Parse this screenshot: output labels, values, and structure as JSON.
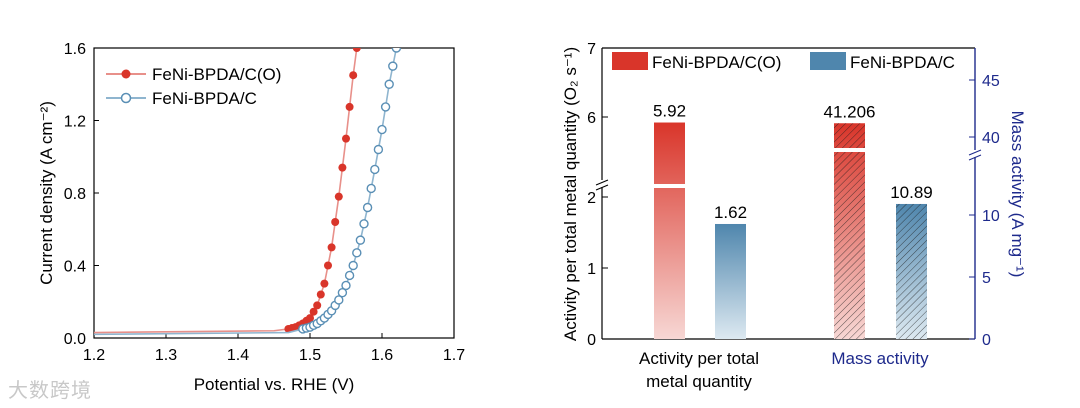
{
  "watermark": "大数跨境",
  "chart_data": [
    {
      "type": "line",
      "title": "",
      "xlabel": "Potential vs. RHE (V)",
      "ylabel": "Current density (A cm⁻²)",
      "xlim": [
        1.2,
        1.7
      ],
      "ylim": [
        0.0,
        1.6
      ],
      "xticks": [
        "1.2",
        "1.3",
        "1.4",
        "1.5",
        "1.6",
        "1.7"
      ],
      "yticks": [
        "0.0",
        "0.4",
        "0.8",
        "1.2",
        "1.6"
      ],
      "legend": "top-left",
      "series": [
        {
          "name": "FeNi-BPDA/C(O)",
          "color": "#d9352a",
          "x": [
            1.2,
            1.45,
            1.47,
            1.48,
            1.49,
            1.5,
            1.51,
            1.52,
            1.53,
            1.54,
            1.55,
            1.56,
            1.565
          ],
          "y": [
            0.03,
            0.04,
            0.05,
            0.06,
            0.08,
            0.11,
            0.18,
            0.3,
            0.5,
            0.78,
            1.1,
            1.45,
            1.6
          ]
        },
        {
          "name": "FeNi-BPDA/C",
          "color": "#5a8fb5",
          "x": [
            1.2,
            1.47,
            1.49,
            1.5,
            1.51,
            1.52,
            1.53,
            1.54,
            1.55,
            1.56,
            1.57,
            1.58,
            1.59,
            1.6,
            1.61,
            1.62
          ],
          "y": [
            0.02,
            0.03,
            0.05,
            0.06,
            0.08,
            0.11,
            0.15,
            0.21,
            0.29,
            0.4,
            0.54,
            0.72,
            0.93,
            1.15,
            1.4,
            1.6
          ]
        }
      ]
    },
    {
      "type": "bar",
      "categories": [
        "Activity per total metal quantity",
        "Mass activity"
      ],
      "category_lines": [
        [
          "Activity per total",
          "metal quantity"
        ],
        [
          "Mass activity"
        ]
      ],
      "ylabel_left": "Activity per total metal quantity (O₂ s⁻¹)",
      "ylabel_right": "Mass activity (A mg⁻¹)",
      "left_axis_ticks": [
        "0",
        "1",
        "2",
        "6",
        "7"
      ],
      "right_axis_ticks": [
        "0",
        "5",
        "10",
        "40",
        "45"
      ],
      "left_axis_break": [
        2.2,
        5.5
      ],
      "right_axis_break": [
        15,
        38
      ],
      "legend": "top",
      "series": [
        {
          "name": "FeNi-BPDA/C(O)",
          "color": "#d9352a",
          "values": [
            5.92,
            41.206
          ],
          "labels": [
            "5.92",
            "41.206"
          ]
        },
        {
          "name": "FeNi-BPDA/C",
          "color": "#4f86ad",
          "values": [
            1.62,
            10.89
          ],
          "labels": [
            "1.62",
            "10.89"
          ]
        }
      ]
    }
  ]
}
